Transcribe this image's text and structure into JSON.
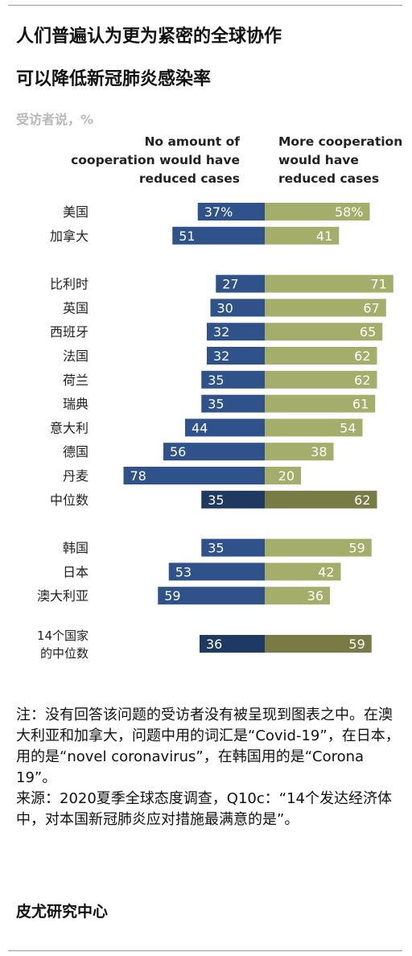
{
  "title_line1": "人们普遍认为更为紧密的全球协作",
  "title_line2": "可以降低新冠肺炎感染率",
  "subtitle": "受访者说，%",
  "note": "注：没有回答该问题的受访者没有被呈现到图表之中。在澳大利亚和加拿大，问题中用的词汇是“Covid-19”，在日本，用的是“novel coronavirus”，在韩国用的是“Corona 19”。",
  "source": "来源：2020夏季全球态度调查，Q10c：“14个发达经济体中，对本国新冠肺炎应对措施最满意的是”。",
  "source_org": "皮尤研究中心",
  "colors": {
    "no_amount": "#2e5289",
    "more_cooperation": "#a5ad6a",
    "no_amount_median": "#1f3a60",
    "more_cooperation_median": "#787b44"
  },
  "chart_data": {
    "type": "bar",
    "orientation": "horizontal-diverging",
    "series": [
      {
        "name": "No amount of cooperation would have reduced cases"
      },
      {
        "name": "More cooperation would have reduced cases"
      }
    ],
    "rows": [
      {
        "label": "美国",
        "no": 37,
        "more": 58,
        "no_text": "37%",
        "more_text": "58%",
        "median": false,
        "group": 0
      },
      {
        "label": "加拿大",
        "no": 51,
        "more": 41,
        "no_text": "51",
        "more_text": "41",
        "median": false,
        "group": 0
      },
      {
        "label": "比利时",
        "no": 27,
        "more": 71,
        "no_text": "27",
        "more_text": "71",
        "median": false,
        "group": 1
      },
      {
        "label": "英国",
        "no": 30,
        "more": 67,
        "no_text": "30",
        "more_text": "67",
        "median": false,
        "group": 1
      },
      {
        "label": "西班牙",
        "no": 32,
        "more": 65,
        "no_text": "32",
        "more_text": "65",
        "median": false,
        "group": 1
      },
      {
        "label": "法国",
        "no": 32,
        "more": 62,
        "no_text": "32",
        "more_text": "62",
        "median": false,
        "group": 1
      },
      {
        "label": "荷兰",
        "no": 35,
        "more": 62,
        "no_text": "35",
        "more_text": "62",
        "median": false,
        "group": 1
      },
      {
        "label": "瑞典",
        "no": 35,
        "more": 61,
        "no_text": "35",
        "more_text": "61",
        "median": false,
        "group": 1
      },
      {
        "label": "意大利",
        "no": 44,
        "more": 54,
        "no_text": "44",
        "more_text": "54",
        "median": false,
        "group": 1
      },
      {
        "label": "德国",
        "no": 56,
        "more": 38,
        "no_text": "56",
        "more_text": "38",
        "median": false,
        "group": 1
      },
      {
        "label": "丹麦",
        "no": 78,
        "more": 20,
        "no_text": "78",
        "more_text": "20",
        "median": false,
        "group": 1
      },
      {
        "label": "中位数",
        "no": 35,
        "more": 62,
        "no_text": "35",
        "more_text": "62",
        "median": true,
        "group": 1
      },
      {
        "label": "韩国",
        "no": 35,
        "more": 59,
        "no_text": "35",
        "more_text": "59",
        "median": false,
        "group": 2
      },
      {
        "label": "日本",
        "no": 53,
        "more": 42,
        "no_text": "53",
        "more_text": "42",
        "median": false,
        "group": 2
      },
      {
        "label": "澳大利亚",
        "no": 59,
        "more": 36,
        "no_text": "59",
        "more_text": "36",
        "median": false,
        "group": 2
      },
      {
        "label": "14个国家的中位数",
        "label_lines": [
          "14个国家",
          "的中位数"
        ],
        "no": 36,
        "more": 59,
        "no_text": "36",
        "more_text": "59",
        "median": true,
        "group": 3
      }
    ]
  }
}
